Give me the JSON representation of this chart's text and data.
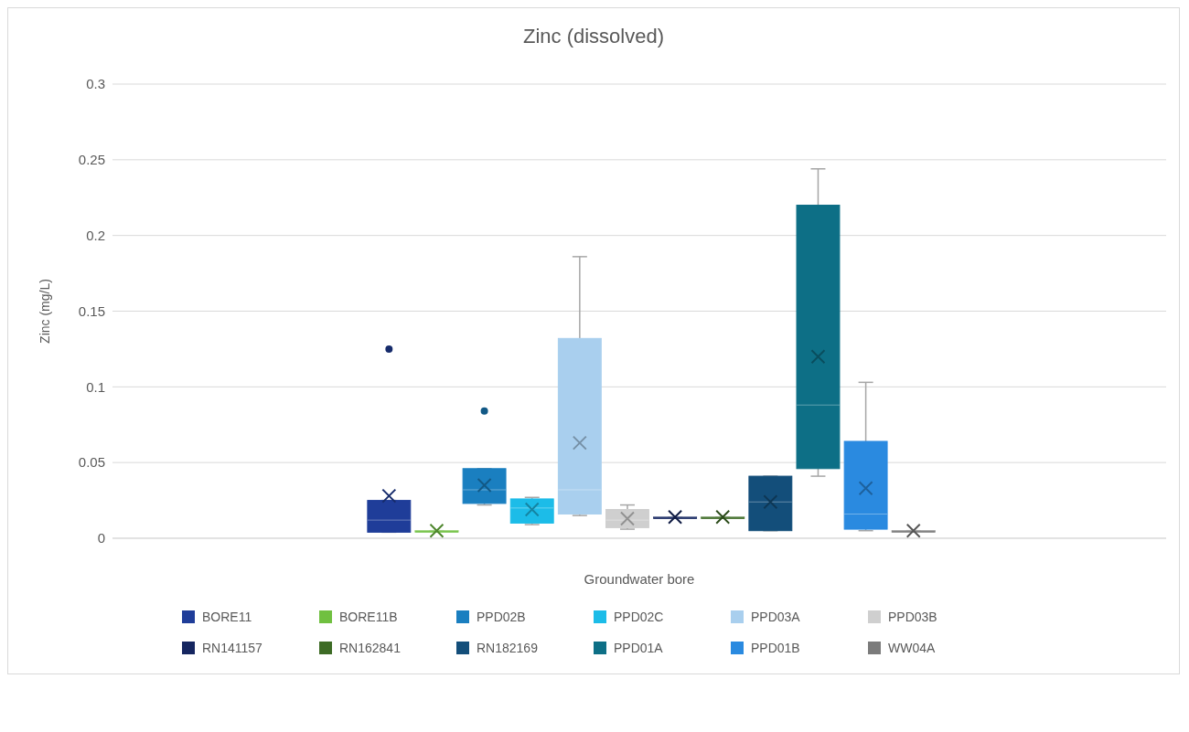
{
  "chart_data": {
    "type": "box",
    "title": "Zinc (dissolved)",
    "xlabel": "Groundwater bore",
    "ylabel": "Zinc (mg/L)",
    "categories": [
      null
    ],
    "ylim": [
      0,
      0.3
    ],
    "yticks": [
      0,
      0.05,
      0.1,
      0.15,
      0.2,
      0.25,
      0.3
    ],
    "grid": "y",
    "legend": "bottom",
    "series": [
      {
        "name": "BORE11",
        "color": "#1f3d99",
        "boxes": [
          {
            "low": 0.004,
            "q1": 0.004,
            "median": 0.012,
            "q3": 0.025,
            "high": 0.025,
            "mean": 0.028,
            "outliers": [
              0.125
            ]
          }
        ]
      },
      {
        "name": "BORE11B",
        "color": "#70c040",
        "boxes": [
          {
            "low": 0.005,
            "q1": 0.005,
            "median": 0.005,
            "q3": 0.005,
            "high": 0.005,
            "mean": 0.005
          }
        ]
      },
      {
        "name": "PPD02B",
        "color": "#1a7fc0",
        "boxes": [
          {
            "low": 0.022,
            "q1": 0.023,
            "median": 0.032,
            "q3": 0.046,
            "high": 0.046,
            "mean": 0.035,
            "outliers": [
              0.084
            ]
          }
        ]
      },
      {
        "name": "PPD02C",
        "color": "#1cbce8",
        "boxes": [
          {
            "low": 0.009,
            "q1": 0.01,
            "median": 0.02,
            "q3": 0.026,
            "high": 0.027,
            "mean": 0.019
          }
        ]
      },
      {
        "name": "PPD03A",
        "color": "#a9cfee",
        "boxes": [
          {
            "low": 0.015,
            "q1": 0.016,
            "median": 0.032,
            "q3": 0.132,
            "high": 0.186,
            "mean": 0.063
          }
        ]
      },
      {
        "name": "PPD03B",
        "color": "#cfcfcf",
        "boxes": [
          {
            "low": 0.006,
            "q1": 0.007,
            "median": 0.012,
            "q3": 0.019,
            "high": 0.022,
            "mean": 0.013
          }
        ]
      },
      {
        "name": "RN141157",
        "color": "#152660",
        "boxes": [
          {
            "low": 0.014,
            "q1": 0.014,
            "median": 0.014,
            "q3": 0.014,
            "high": 0.014,
            "mean": 0.014
          }
        ]
      },
      {
        "name": "RN162841",
        "color": "#3d6b25",
        "boxes": [
          {
            "low": 0.014,
            "q1": 0.014,
            "median": 0.014,
            "q3": 0.014,
            "high": 0.014,
            "mean": 0.014
          }
        ]
      },
      {
        "name": "RN182169",
        "color": "#134e7a",
        "boxes": [
          {
            "low": 0.005,
            "q1": 0.005,
            "median": 0.024,
            "q3": 0.041,
            "high": 0.041,
            "mean": 0.024
          }
        ]
      },
      {
        "name": "PPD01A",
        "color": "#0d6f86",
        "boxes": [
          {
            "low": 0.041,
            "q1": 0.046,
            "median": 0.088,
            "q3": 0.22,
            "high": 0.244,
            "mean": 0.12
          }
        ]
      },
      {
        "name": "PPD01B",
        "color": "#2a8ae0",
        "boxes": [
          {
            "low": 0.005,
            "q1": 0.006,
            "median": 0.016,
            "q3": 0.064,
            "high": 0.103,
            "mean": 0.033
          }
        ]
      },
      {
        "name": "WW04A",
        "color": "#7b7b7b",
        "boxes": [
          {
            "low": 0.005,
            "q1": 0.005,
            "median": 0.005,
            "q3": 0.005,
            "high": 0.005,
            "mean": 0.005
          }
        ]
      }
    ]
  }
}
